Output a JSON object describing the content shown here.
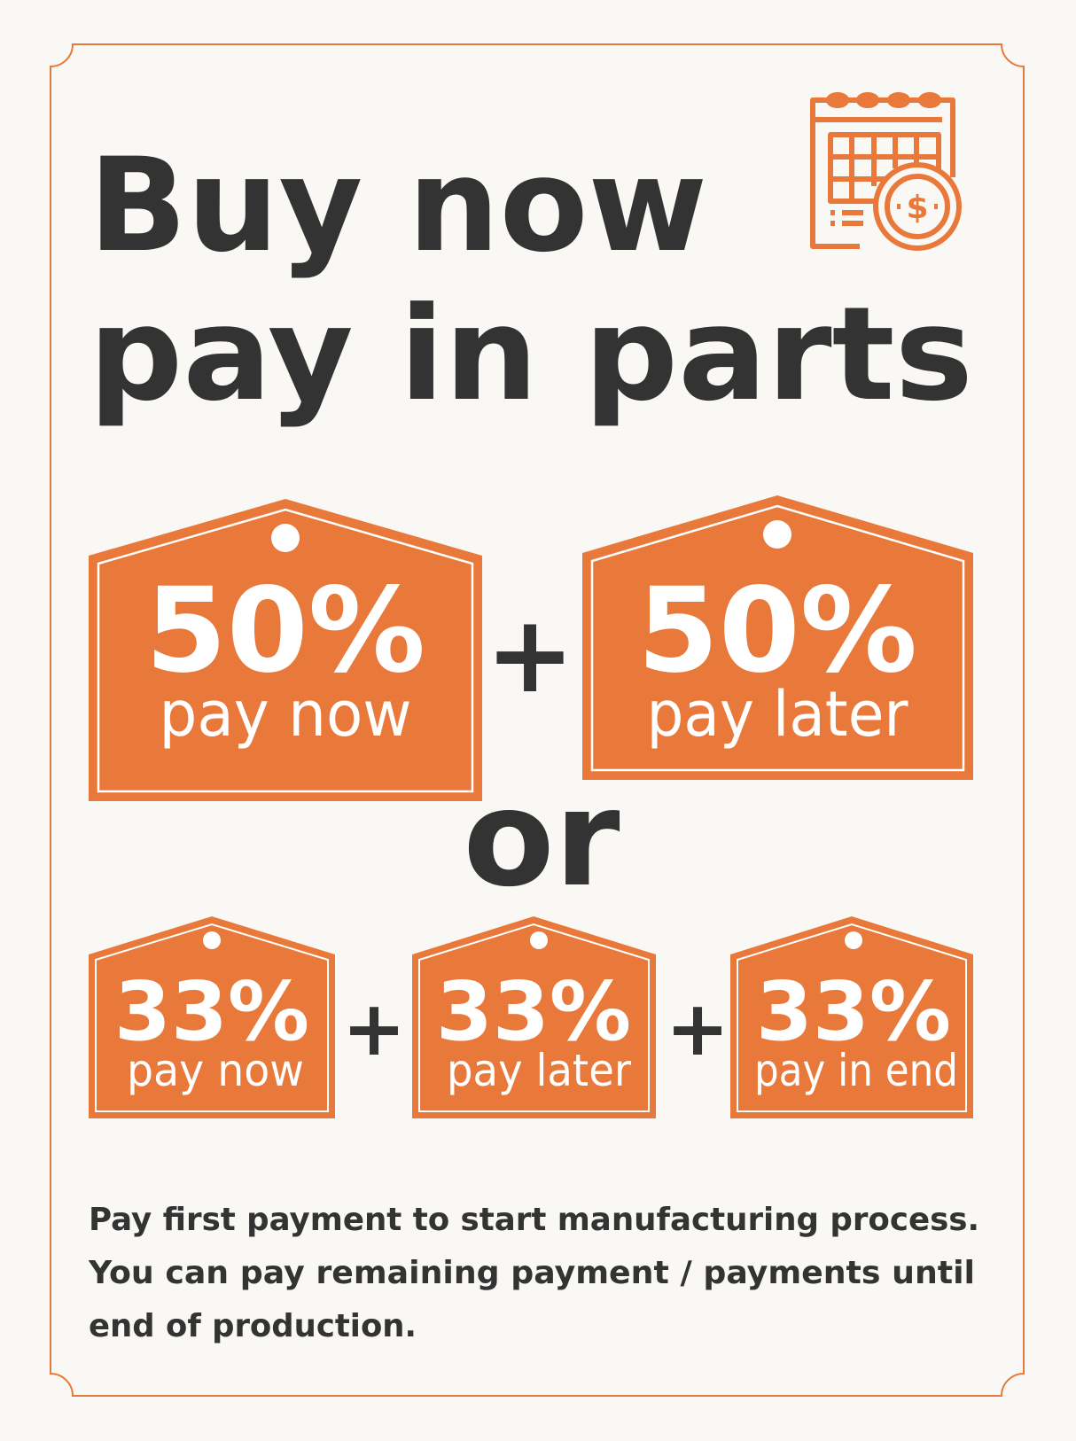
{
  "title": {
    "line1": "Buy now",
    "line2": "pay in parts"
  },
  "icon": "calendar-dollar-icon",
  "colors": {
    "accent": "#E8793A",
    "text": "#333333",
    "background": "#FAF8F4"
  },
  "option_two_parts": {
    "tags": [
      {
        "percent": "50%",
        "label": "pay now"
      },
      {
        "percent": "50%",
        "label": "pay later"
      }
    ],
    "plus": "+"
  },
  "or": "or",
  "option_three_parts": {
    "tags": [
      {
        "percent": "33%",
        "label": "pay now"
      },
      {
        "percent": "33%",
        "label": "pay later"
      },
      {
        "percent": "33%",
        "label": "pay in end"
      }
    ],
    "plus": "+"
  },
  "description": {
    "line1": "Pay first payment to start manufacturing process.",
    "line2": "You can pay remaining payment / payments until",
    "line3": "end of production."
  }
}
